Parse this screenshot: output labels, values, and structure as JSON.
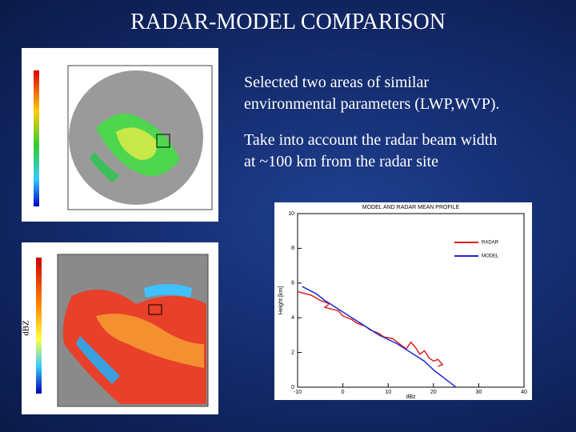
{
  "header": {
    "title": "RADAR-MODEL COMPARISON"
  },
  "bullets": [
    [
      "Selected two areas of similar",
      "environmental parameters (LWP,WVP)."
    ],
    [
      "Take into account the radar beam width",
      "at ~100 km from the radar site"
    ]
  ],
  "colorbar_label": "dBZ",
  "chart_data": {
    "type": "line",
    "title": "MODEL AND RADAR MEAN PROFILE",
    "x_label": "dBz",
    "y_label": "Height [km]",
    "xlim": [
      -10,
      40
    ],
    "xticks": [
      -10,
      0,
      10,
      20,
      30,
      40
    ],
    "ylim": [
      0,
      10
    ],
    "yticks": [
      0,
      2,
      4,
      6,
      8,
      10
    ],
    "legend": "upper right",
    "series": [
      {
        "name": "RADAR",
        "color": "#e02020",
        "x": [
          -10,
          -7,
          -5,
          -3,
          -4,
          -1,
          0,
          2,
          3,
          5,
          6,
          8,
          9,
          11,
          12,
          13,
          14,
          15,
          16,
          17,
          18,
          19,
          20,
          21,
          22,
          21
        ],
        "values": [
          5.5,
          5.3,
          5.0,
          4.8,
          4.6,
          4.4,
          4.1,
          3.9,
          3.7,
          3.5,
          3.3,
          3.1,
          2.9,
          2.8,
          2.6,
          2.4,
          2.2,
          2.6,
          2.3,
          1.9,
          2.1,
          1.7,
          1.5,
          1.6,
          1.3,
          1.2
        ]
      },
      {
        "name": "MODEL",
        "color": "#1a2ad0",
        "x": [
          -9,
          -6,
          -4,
          -1,
          2,
          5,
          8,
          12,
          15,
          18,
          20,
          22,
          23,
          24,
          25
        ],
        "values": [
          5.8,
          5.4,
          5.0,
          4.5,
          4.0,
          3.5,
          3.0,
          2.5,
          2.0,
          1.5,
          1.0,
          0.6,
          0.4,
          0.2,
          0.0
        ]
      }
    ]
  }
}
